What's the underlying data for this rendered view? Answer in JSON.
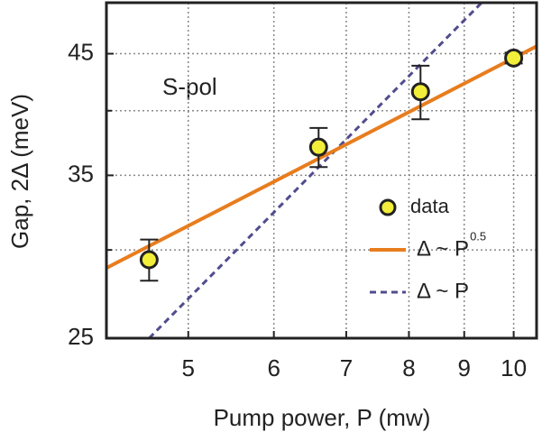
{
  "chart_data": {
    "type": "scatter",
    "x_label": "Pump power, P (mw)",
    "y_label": "Gap, 2Δ (meV)",
    "annotation": "S-pol",
    "log_x": true,
    "log_y": true,
    "grid": true,
    "xlim": [
      4.2,
      10.5
    ],
    "xticks": [
      5,
      6,
      7,
      8,
      9,
      10
    ],
    "ylim": [
      25,
      50
    ],
    "yticks": [
      25,
      35,
      45
    ],
    "y_minor_ticks": [
      30,
      40
    ],
    "series": [
      {
        "name": "data",
        "kind": "points",
        "color": "#f2ee3a",
        "x": [
          4.6,
          6.6,
          8.2,
          10
        ],
        "values": [
          29.4,
          37.1,
          41.6,
          44.6
        ],
        "errors": [
          1.25,
          1.5,
          2.3,
          0.5
        ]
      },
      {
        "name": "Δ ~ P",
        "name_superscript": "0.5",
        "kind": "solid",
        "color": "#e87d1e",
        "x": [
          4.2,
          10.5
        ],
        "values": [
          28.9,
          45.7
        ]
      },
      {
        "name": "Δ ~ P",
        "kind": "dashed",
        "color": "#514c8e",
        "x": [
          4.6,
          9.34
        ],
        "values": [
          25,
          50
        ]
      }
    ]
  }
}
